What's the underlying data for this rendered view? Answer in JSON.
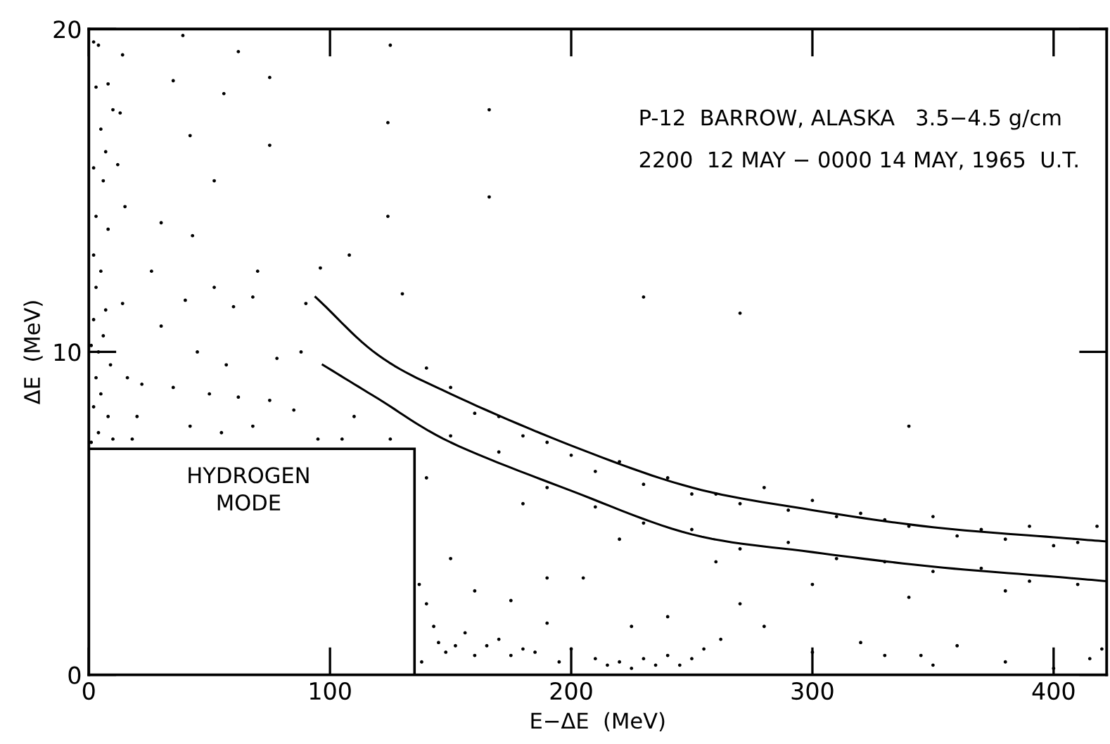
{
  "chart_data": {
    "type": "scatter",
    "xlabel": "E−ΔE  (MeV)",
    "ylabel": "ΔE  (MeV)",
    "xlim": [
      0,
      422
    ],
    "ylim": [
      0,
      20
    ],
    "xticks": [
      0,
      100,
      200,
      300,
      400
    ],
    "yticks": [
      0,
      10,
      20
    ],
    "grid": false,
    "legend": false,
    "annotations": [
      "P-12  BARROW, ALASKA   3.5−4.5 g/cm",
      "2200  12 MAY − 0000 14 MAY, 1965  U.T.",
      "HYDROGEN\nMODE"
    ],
    "series": [
      {
        "marker": "circle",
        "color": "#000000",
        "x": [
          2,
          4,
          8,
          3,
          10,
          5,
          7,
          2,
          6,
          3,
          8,
          2,
          5,
          3,
          7,
          2,
          6,
          1,
          4,
          9,
          3,
          5,
          2,
          8,
          4,
          1,
          10,
          14,
          13,
          12,
          15,
          14,
          16,
          20,
          18,
          39,
          62,
          75,
          35,
          56,
          75,
          42,
          52,
          30,
          43,
          26,
          40,
          52,
          60,
          70,
          68,
          30,
          45,
          57,
          78,
          88,
          22,
          35,
          50,
          62,
          75,
          85,
          42,
          55,
          68,
          90,
          96,
          95,
          108,
          105,
          124,
          124,
          125,
          110,
          125,
          130,
          140,
          150,
          160,
          170,
          180,
          190,
          200,
          210,
          220,
          230,
          240,
          250,
          260,
          270,
          280,
          290,
          300,
          310,
          320,
          330,
          340,
          350,
          360,
          370,
          380,
          390,
          400,
          410,
          418,
          150,
          170,
          190,
          210,
          230,
          250,
          270,
          290,
          310,
          330,
          350,
          370,
          390,
          410,
          140,
          180,
          220,
          260,
          300,
          340,
          380,
          137,
          140,
          143,
          145,
          148,
          138,
          152,
          156,
          160,
          165,
          170,
          175,
          180,
          185,
          190,
          195,
          200,
          210,
          215,
          220,
          225,
          230,
          235,
          240,
          245,
          250,
          255,
          262,
          150,
          160,
          175,
          190,
          205,
          225,
          240,
          280,
          300,
          320,
          330,
          350,
          360,
          380,
          400,
          415,
          420,
          270,
          345,
          230,
          270,
          340,
          166,
          166
        ],
        "values": [
          19.6,
          19.5,
          18.3,
          18.2,
          17.5,
          16.9,
          16.2,
          15.7,
          15.3,
          14.2,
          13.8,
          13.0,
          12.5,
          12.0,
          11.3,
          11.0,
          10.5,
          10.2,
          10.0,
          9.6,
          9.2,
          8.7,
          8.3,
          8.0,
          7.5,
          7.2,
          7.3,
          19.2,
          17.4,
          15.8,
          14.5,
          11.5,
          9.2,
          8.0,
          7.3,
          19.8,
          19.3,
          18.5,
          18.4,
          18.0,
          16.4,
          16.7,
          15.3,
          14.0,
          13.6,
          12.5,
          11.6,
          12.0,
          11.4,
          12.5,
          11.7,
          10.8,
          10.0,
          9.6,
          9.8,
          10.0,
          9.0,
          8.9,
          8.7,
          8.6,
          8.5,
          8.2,
          7.7,
          7.5,
          7.7,
          11.5,
          12.6,
          7.3,
          13.0,
          7.3,
          14.2,
          17.1,
          19.5,
          8.0,
          7.3,
          11.8,
          9.5,
          8.9,
          8.1,
          8.0,
          7.4,
          7.2,
          6.8,
          6.3,
          6.6,
          5.9,
          6.1,
          5.6,
          5.6,
          5.3,
          5.8,
          5.1,
          5.4,
          4.9,
          5.0,
          4.8,
          4.6,
          4.9,
          4.3,
          4.5,
          4.2,
          4.6,
          4.0,
          4.1,
          4.6,
          7.4,
          6.9,
          5.8,
          5.2,
          4.7,
          4.5,
          3.9,
          4.1,
          3.6,
          3.5,
          3.2,
          3.3,
          2.9,
          2.8,
          6.1,
          5.3,
          4.2,
          3.5,
          2.8,
          2.4,
          2.6,
          2.8,
          2.2,
          1.5,
          1.0,
          0.7,
          0.4,
          0.9,
          1.3,
          0.6,
          0.9,
          1.1,
          0.6,
          0.8,
          0.7,
          1.6,
          0.4,
          0.8,
          0.5,
          0.3,
          0.4,
          0.2,
          0.5,
          0.3,
          0.6,
          0.3,
          0.5,
          0.8,
          1.1,
          3.6,
          2.6,
          2.3,
          3.0,
          3.0,
          1.5,
          1.8,
          1.5,
          0.7,
          1.0,
          0.6,
          0.3,
          0.9,
          0.4,
          0.2,
          0.5,
          0.8,
          2.2,
          0.6,
          11.7,
          11.2,
          7.7,
          14.8,
          17.5
        ]
      },
      {
        "type": "line",
        "color": "#000000",
        "x": [
          94,
          120,
          150,
          200,
          250,
          300,
          350,
          400,
          422
        ],
        "values": [
          11.7,
          9.9,
          8.7,
          7.1,
          5.8,
          5.1,
          4.57,
          4.26,
          4.13
        ]
      },
      {
        "type": "line",
        "color": "#000000",
        "x": [
          97,
          120,
          150,
          200,
          250,
          300,
          350,
          400,
          422
        ],
        "values": [
          9.6,
          8.55,
          7.2,
          5.7,
          4.35,
          3.8,
          3.35,
          3.04,
          2.9
        ]
      }
    ]
  }
}
